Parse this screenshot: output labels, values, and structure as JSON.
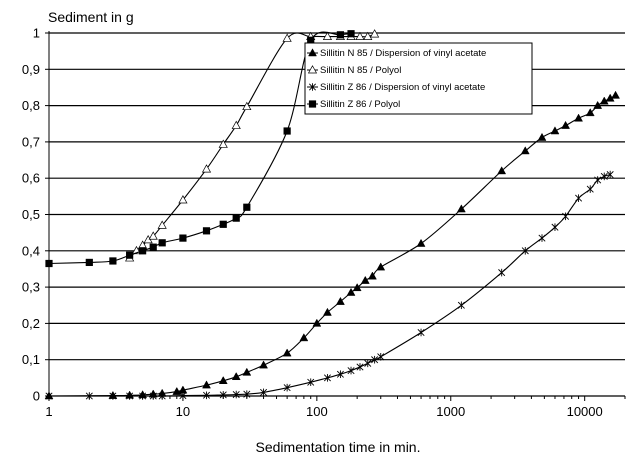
{
  "chart_data": {
    "type": "scatter",
    "ylabel": "Sediment in g",
    "xlabel": "Sedimentation time in min.",
    "x_scale": "log",
    "xlim": [
      1,
      20000
    ],
    "ylim": [
      0,
      1
    ],
    "x_ticks": [
      1,
      10,
      100,
      1000,
      10000
    ],
    "x_tick_labels": [
      "1",
      "10",
      "100",
      "1000",
      "10000"
    ],
    "y_ticks": [
      0,
      0.1,
      0.2,
      0.3,
      0.4,
      0.5,
      0.6,
      0.7,
      0.8,
      0.9,
      1
    ],
    "y_tick_labels": [
      "0",
      "0,1",
      "0,2",
      "0,3",
      "0,4",
      "0,5",
      "0,6",
      "0,7",
      "0,8",
      "0,9",
      "1"
    ],
    "grid": "horizontal",
    "legend_position": "top-right",
    "series": [
      {
        "name": "Sillitin N 85 / Dispersion of vinyl acetate",
        "marker": "filled-triangle",
        "x": [
          1,
          3,
          4,
          5,
          6,
          7,
          9,
          10,
          15,
          20,
          25,
          30,
          40,
          60,
          80,
          100,
          120,
          150,
          180,
          200,
          230,
          260,
          300,
          600,
          1200,
          2400,
          3600,
          4800,
          6000,
          7200,
          9000,
          11000,
          12500,
          14000,
          15500,
          17000
        ],
        "y": [
          0,
          0.001,
          0.002,
          0.003,
          0.005,
          0.007,
          0.012,
          0.016,
          0.03,
          0.042,
          0.053,
          0.065,
          0.085,
          0.118,
          0.16,
          0.2,
          0.23,
          0.26,
          0.285,
          0.298,
          0.318,
          0.33,
          0.355,
          0.42,
          0.515,
          0.62,
          0.675,
          0.712,
          0.73,
          0.745,
          0.765,
          0.78,
          0.8,
          0.812,
          0.82,
          0.828
        ]
      },
      {
        "name": "Sillitin N 85 / Polyol",
        "marker": "open-triangle",
        "x": [
          4,
          4.5,
          5,
          5.5,
          6,
          7,
          10,
          15,
          20,
          25,
          30,
          60,
          90,
          120,
          150,
          180,
          210,
          240,
          270
        ],
        "y": [
          0.38,
          0.4,
          0.415,
          0.43,
          0.44,
          0.47,
          0.54,
          0.625,
          0.693,
          0.745,
          0.797,
          0.985,
          0.99,
          0.99,
          0.99,
          0.99,
          0.99,
          0.99,
          0.997
        ]
      },
      {
        "name": "Sillitin Z 86 / Dispersion of vinyl acetate",
        "marker": "star",
        "x": [
          1,
          2,
          3,
          4,
          5,
          6,
          7,
          10,
          15,
          20,
          25,
          30,
          40,
          60,
          90,
          120,
          150,
          180,
          210,
          240,
          270,
          300,
          600,
          1200,
          2400,
          3600,
          4800,
          6000,
          7200,
          9000,
          11000,
          12500,
          14000,
          15500
        ],
        "y": [
          0,
          0,
          0,
          0,
          0,
          0,
          0,
          0.001,
          0.002,
          0.003,
          0.004,
          0.005,
          0.01,
          0.023,
          0.038,
          0.05,
          0.06,
          0.07,
          0.08,
          0.09,
          0.1,
          0.108,
          0.175,
          0.25,
          0.34,
          0.4,
          0.435,
          0.465,
          0.495,
          0.545,
          0.57,
          0.595,
          0.605,
          0.61
        ]
      },
      {
        "name": "Sillitin Z 86 / Polyol",
        "marker": "filled-square",
        "x": [
          1,
          2,
          3,
          4,
          5,
          6,
          7,
          10,
          15,
          20,
          25,
          30,
          60,
          90,
          150,
          180
        ],
        "y": [
          0.365,
          0.368,
          0.372,
          0.388,
          0.4,
          0.41,
          0.422,
          0.435,
          0.455,
          0.473,
          0.49,
          0.52,
          0.73,
          0.98,
          0.995,
          0.998
        ]
      }
    ]
  }
}
